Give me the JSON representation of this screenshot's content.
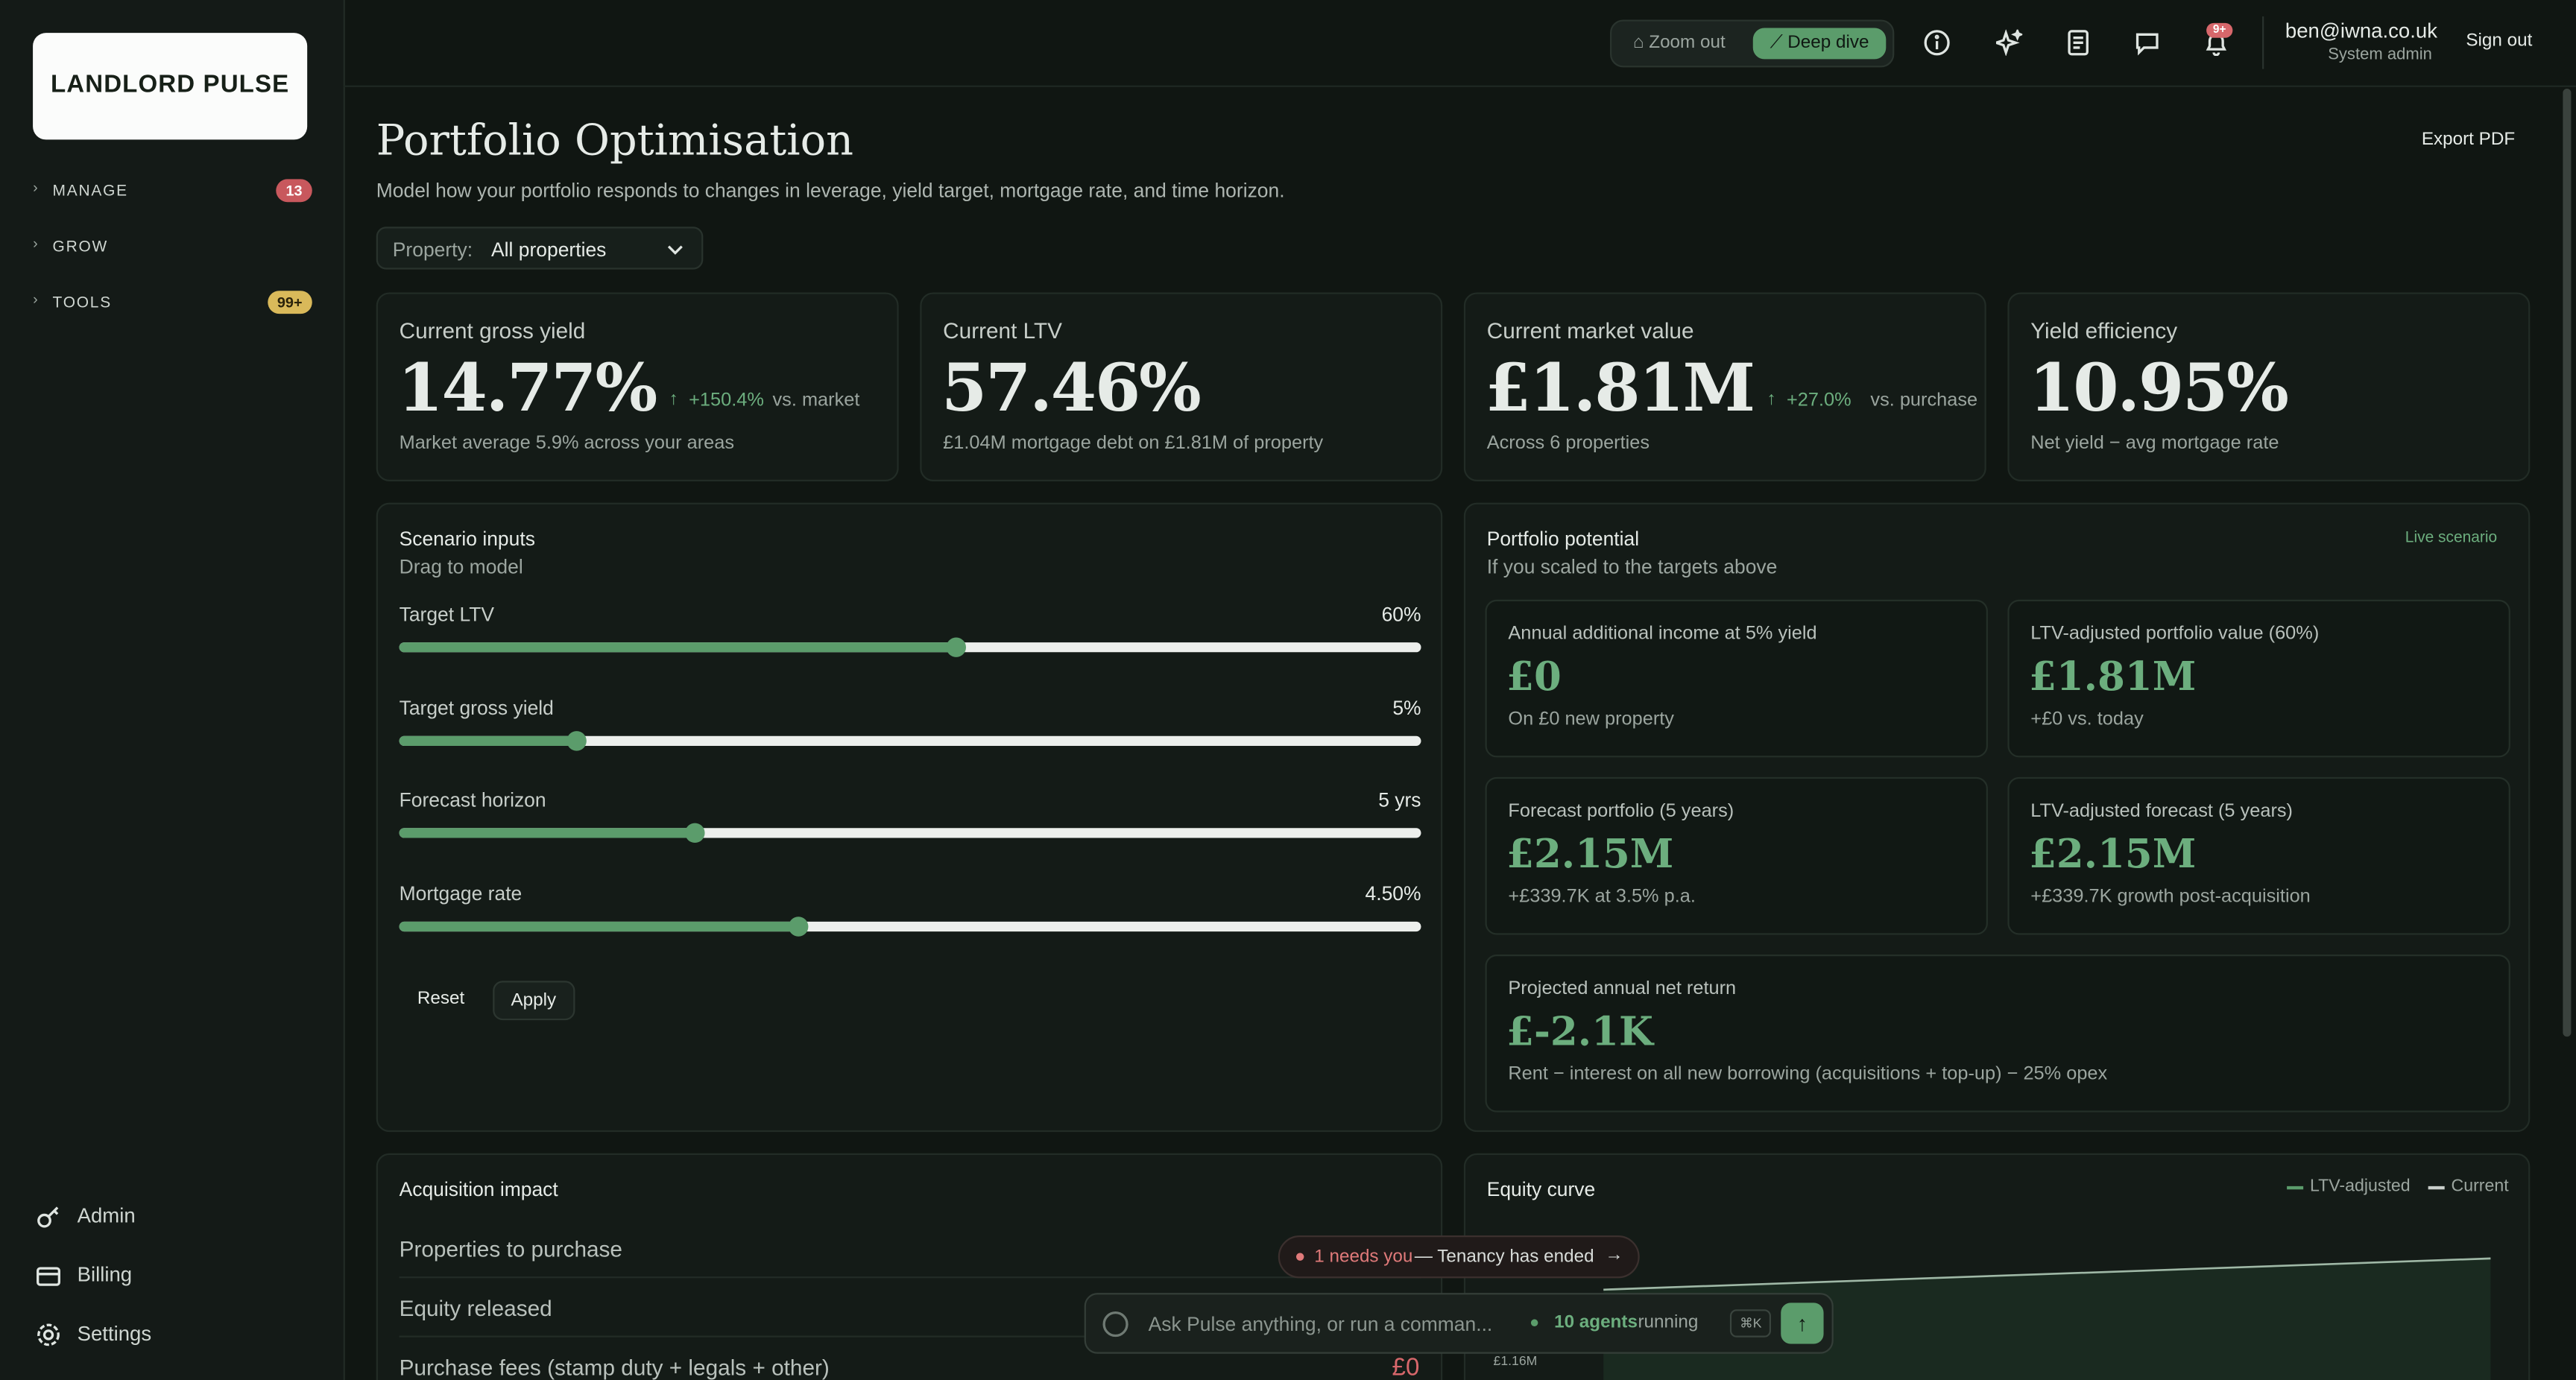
{
  "sidebar": {
    "logo": "LANDLORD PULSE",
    "nav": [
      {
        "label": "MANAGE",
        "badge": "13"
      },
      {
        "label": "GROW"
      },
      {
        "label": "TOOLS",
        "badge": "99+"
      }
    ],
    "footer": [
      "Admin",
      "Billing",
      "Settings"
    ]
  },
  "topbar": {
    "zoom_out": "Zoom out",
    "deep_dive": "Deep dive",
    "notifications_badge": "9+",
    "user_email": "ben@iwna.co.uk",
    "user_role": "System admin",
    "sign_out": "Sign out"
  },
  "header": {
    "title": "Portfolio Optimisation",
    "subtitle": "Model how your portfolio responds to changes in leverage, yield target, mortgage rate, and time horizon.",
    "export": "Export PDF",
    "property_label": "Property:",
    "property_value": "All properties"
  },
  "kpis": [
    {
      "label": "Current gross yield",
      "value": "14.77%",
      "delta": "+150.4%",
      "delta_note": "vs. market",
      "note": "Market average 5.9% across your areas"
    },
    {
      "label": "Current LTV",
      "value": "57.46%",
      "note": "£1.04M mortgage debt on £1.81M of property"
    },
    {
      "label": "Current market value",
      "value": "£1.81M",
      "delta": "+27.0%",
      "delta_note": "vs. purchase",
      "note": "Across 6 properties"
    },
    {
      "label": "Yield efficiency",
      "value": "10.95%",
      "note": "Net yield − avg mortgage rate"
    }
  ],
  "scenario": {
    "title": "Scenario inputs",
    "subtitle": "Drag to model",
    "sliders": [
      {
        "label": "Target LTV",
        "value": "60%"
      },
      {
        "label": "Target gross yield",
        "value": "5%"
      },
      {
        "label": "Forecast horizon",
        "value": "5 yrs"
      },
      {
        "label": "Mortgage rate",
        "value": "4.50%"
      }
    ],
    "reset": "Reset",
    "apply": "Apply"
  },
  "potential": {
    "title": "Portfolio potential",
    "subtitle": "If you scaled to the targets above",
    "badge": "Live scenario",
    "cards": [
      {
        "label": "Annual additional income at 5% yield",
        "value": "£0",
        "note": "On £0 new property"
      },
      {
        "label": "LTV-adjusted portfolio value (60%)",
        "value": "£1.81M",
        "note": "+£0 vs. today"
      },
      {
        "label": "Forecast portfolio (5 years)",
        "value": "£2.15M",
        "note": "+£339.7K at 3.5% p.a."
      },
      {
        "label": "LTV-adjusted forecast (5 years)",
        "value": "£2.15M",
        "note": "+£339.7K growth post-acquisition"
      },
      {
        "label": "Projected annual net return",
        "value": "£-2.1K",
        "note": "Rent − interest on all new borrowing (acquisitions + top-up) − 25% opex"
      }
    ]
  },
  "acquisition": {
    "title": "Acquisition impact",
    "rows": [
      {
        "label": "Properties to purchase"
      },
      {
        "label": "Equity released"
      },
      {
        "label": "Purchase fees (stamp duty + legals + other)",
        "value": "£0"
      }
    ]
  },
  "equity_curve": {
    "title": "Equity curve",
    "legend": [
      "LTV-adjusted",
      "Current"
    ],
    "axis_label": "£1.16M"
  },
  "toast": {
    "highlight": "1 needs you",
    "text": "— Tenancy has ended"
  },
  "command_bar": {
    "placeholder": "Ask Pulse anything, or run a comman...",
    "agents": "10 agents",
    "agents_status": "running",
    "shortcut": "⌘K"
  }
}
